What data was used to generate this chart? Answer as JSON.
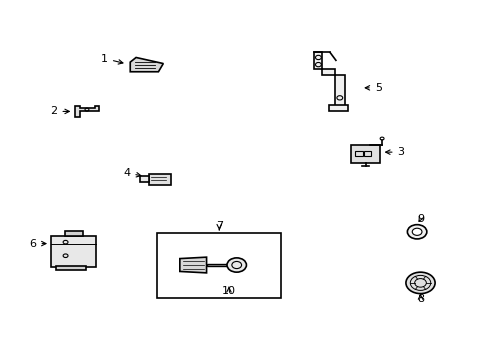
{
  "background_color": "#ffffff",
  "figsize": [
    4.89,
    3.6
  ],
  "dpi": 100,
  "label_fontsize": 8,
  "lw": 1.2
}
